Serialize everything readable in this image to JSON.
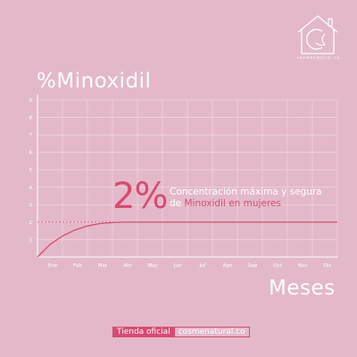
{
  "brand": {
    "logo_name": "cosmenatural",
    "logo_caption": "cosmenatural.co"
  },
  "headline": {
    "value": "2%",
    "line1": "Concentración máxima y segura",
    "line2_prefix": "de",
    "line2_highlight": "Minoxidil en mujeres"
  },
  "footer": {
    "label": "Tienda oficial",
    "url": "cosmenatural.co"
  },
  "colors": {
    "background": "#e3b9c9",
    "accent": "#d94a73",
    "text": "#ffffff",
    "grid": "#f4dbe5"
  },
  "chart_data": {
    "type": "line",
    "title": "",
    "ylabel": "%Minoxidil",
    "xlabel": "Meses",
    "ylim": [
      0,
      9
    ],
    "yticks": [
      1,
      2,
      3,
      4,
      5,
      6,
      7,
      8,
      9
    ],
    "categories": [
      "Ene",
      "Feb",
      "Mar",
      "Abr",
      "May",
      "Jun",
      "Jul",
      "Ago",
      "Sep",
      "Oct",
      "Nov",
      "Dic"
    ],
    "grid": true,
    "series": [
      {
        "color": "#d94a73",
        "points": [
          [
            0,
            0
          ],
          [
            0.5,
            0.72
          ],
          [
            1,
            1.2
          ],
          [
            1.5,
            1.55
          ],
          [
            2,
            1.78
          ],
          [
            2.5,
            1.92
          ],
          [
            3,
            1.98
          ],
          [
            3.5,
            2.0
          ],
          [
            4,
            2.0
          ],
          [
            5,
            2.0
          ],
          [
            6,
            2.0
          ],
          [
            7,
            2.0
          ],
          [
            8,
            2.0
          ],
          [
            9,
            2.0
          ],
          [
            10,
            2.0
          ],
          [
            11,
            2.0
          ],
          [
            12,
            2.0
          ]
        ]
      }
    ],
    "reference_line": {
      "y": 2,
      "style": "dashed"
    }
  }
}
